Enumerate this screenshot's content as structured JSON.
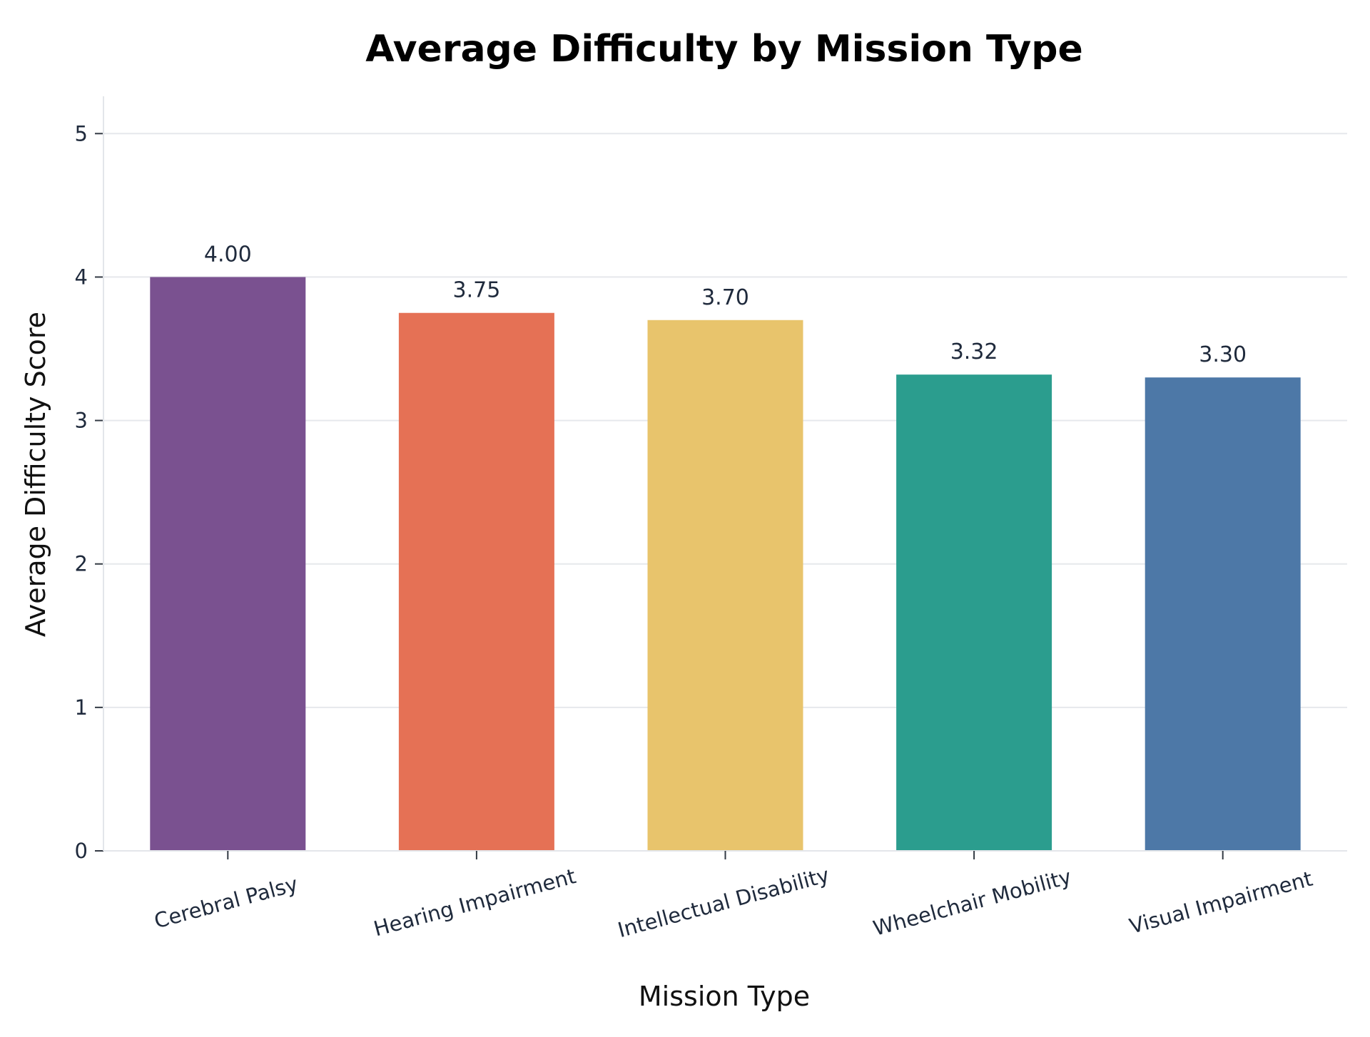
{
  "chart_data": {
    "type": "bar",
    "title": "Average Difficulty by Mission Type",
    "xlabel": "Mission Type",
    "ylabel": "Average Difficulty Score",
    "categories": [
      "Cerebral Palsy",
      "Hearing Impairment",
      "Intellectual Disability",
      "Wheelchair Mobility",
      "Visual Impairment"
    ],
    "values": [
      4.0,
      3.75,
      3.7,
      3.32,
      3.3
    ],
    "value_labels": [
      "4.00",
      "3.75",
      "3.70",
      "3.32",
      "3.30"
    ],
    "colors": [
      "#7a5190",
      "#e57155",
      "#e8c46c",
      "#2b9d8e",
      "#4d78a7"
    ],
    "ylim": [
      0,
      5.26
    ],
    "yticks": [
      0,
      1,
      2,
      3,
      4,
      5
    ],
    "ytick_labels": [
      "0",
      "1",
      "2",
      "3",
      "4",
      "5"
    ],
    "grid": "horizontal",
    "legend": "none"
  }
}
